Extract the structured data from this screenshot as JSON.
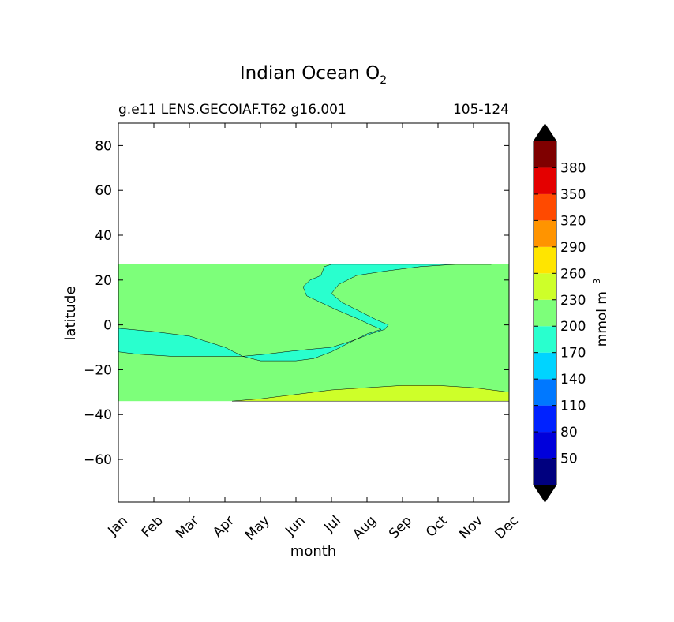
{
  "chart_data": {
    "type": "contourf",
    "title": "Indian Ocean O",
    "title_subscript": "2",
    "subtitle_left": "g.e11 LENS.GECOIAF.T62 g16.001",
    "subtitle_right": "105-124",
    "xlabel": "month",
    "ylabel": "latitude",
    "x_categories": [
      "Jan",
      "Feb",
      "Mar",
      "Apr",
      "May",
      "Jun",
      "Jul",
      "Aug",
      "Sep",
      "Oct",
      "Nov",
      "Dec"
    ],
    "xlim": [
      0,
      11
    ],
    "ylim": [
      -79,
      90
    ],
    "yticks": [
      80,
      60,
      40,
      20,
      0,
      -20,
      -40,
      -60
    ],
    "ytick_labels": [
      "80",
      "60",
      "40",
      "20",
      "0",
      "−20",
      "−40",
      "−60"
    ],
    "data_lat_range": [
      -34,
      27
    ],
    "colorbar": {
      "label": "mmol m",
      "label_superscript": "−3",
      "levels": [
        20,
        50,
        80,
        110,
        140,
        170,
        200,
        230,
        260,
        290,
        320,
        350,
        380,
        410
      ],
      "tick_labels": [
        "50",
        "80",
        "110",
        "140",
        "170",
        "200",
        "230",
        "260",
        "290",
        "320",
        "350",
        "380"
      ],
      "colors": [
        "#00007f",
        "#0000db",
        "#0022ff",
        "#0078ff",
        "#00d4ff",
        "#29ffce",
        "#7dff7a",
        "#ceff29",
        "#ffe500",
        "#ff9400",
        "#ff4a00",
        "#e40000",
        "#7f0000"
      ],
      "extend": "both",
      "extend_color": "#000000"
    },
    "regions": [
      {
        "band": "200-230",
        "color": "#7dff7a",
        "description": "background over most of basin"
      },
      {
        "band": "170-200",
        "color": "#29ffce",
        "description": "oxygen minimum tongue from ~25N (Jul) to ~-15 (Feb-May)"
      },
      {
        "band": "230-260",
        "color": "#ceff29",
        "description": "southern band below ~-27 (Apr-Dec)"
      }
    ],
    "fill_boundaries": {
      "low_oxygen_tongue": [
        [
          0,
          -1.5
        ],
        [
          1,
          -3
        ],
        [
          1.5,
          -4
        ],
        [
          2,
          -5
        ],
        [
          2.4,
          -7
        ],
        [
          2.6,
          -8
        ],
        [
          3,
          -10
        ],
        [
          3.5,
          -14
        ],
        [
          4,
          -16
        ],
        [
          5,
          -16
        ],
        [
          5.5,
          -15
        ],
        [
          6,
          -12
        ],
        [
          6.5,
          -8
        ],
        [
          7,
          -4
        ],
        [
          7.4,
          -2
        ],
        [
          7.1,
          0
        ],
        [
          6.7,
          3
        ],
        [
          6.1,
          7
        ],
        [
          5.7,
          10
        ],
        [
          5.3,
          13
        ],
        [
          5.2,
          17
        ],
        [
          5.4,
          20
        ],
        [
          5.7,
          22
        ],
        [
          5.8,
          26
        ],
        [
          6,
          27
        ],
        [
          7,
          27
        ],
        [
          9,
          27
        ],
        [
          10,
          27
        ],
        [
          10.5,
          27
        ],
        [
          9.5,
          27
        ],
        [
          8.5,
          26
        ],
        [
          7.5,
          24
        ],
        [
          6.7,
          22
        ],
        [
          6.2,
          18
        ],
        [
          6,
          14
        ],
        [
          6.3,
          10
        ],
        [
          6.8,
          6
        ],
        [
          7.3,
          2
        ],
        [
          7.6,
          0
        ],
        [
          7.5,
          -2
        ],
        [
          7.1,
          -4
        ],
        [
          6.6,
          -7
        ],
        [
          6,
          -10
        ],
        [
          5.3,
          -11
        ],
        [
          4.7,
          -12
        ],
        [
          4.2,
          -13
        ],
        [
          3.5,
          -14
        ],
        [
          2.5,
          -14
        ],
        [
          1.5,
          -14
        ],
        [
          0.5,
          -13
        ],
        [
          0,
          -12
        ]
      ],
      "south_band": [
        [
          3.2,
          -34
        ],
        [
          4,
          -33
        ],
        [
          5,
          -31
        ],
        [
          6,
          -29
        ],
        [
          7,
          -28
        ],
        [
          8,
          -27
        ],
        [
          9,
          -27
        ],
        [
          10,
          -28
        ],
        [
          11,
          -30
        ],
        [
          11,
          -34
        ]
      ]
    }
  }
}
